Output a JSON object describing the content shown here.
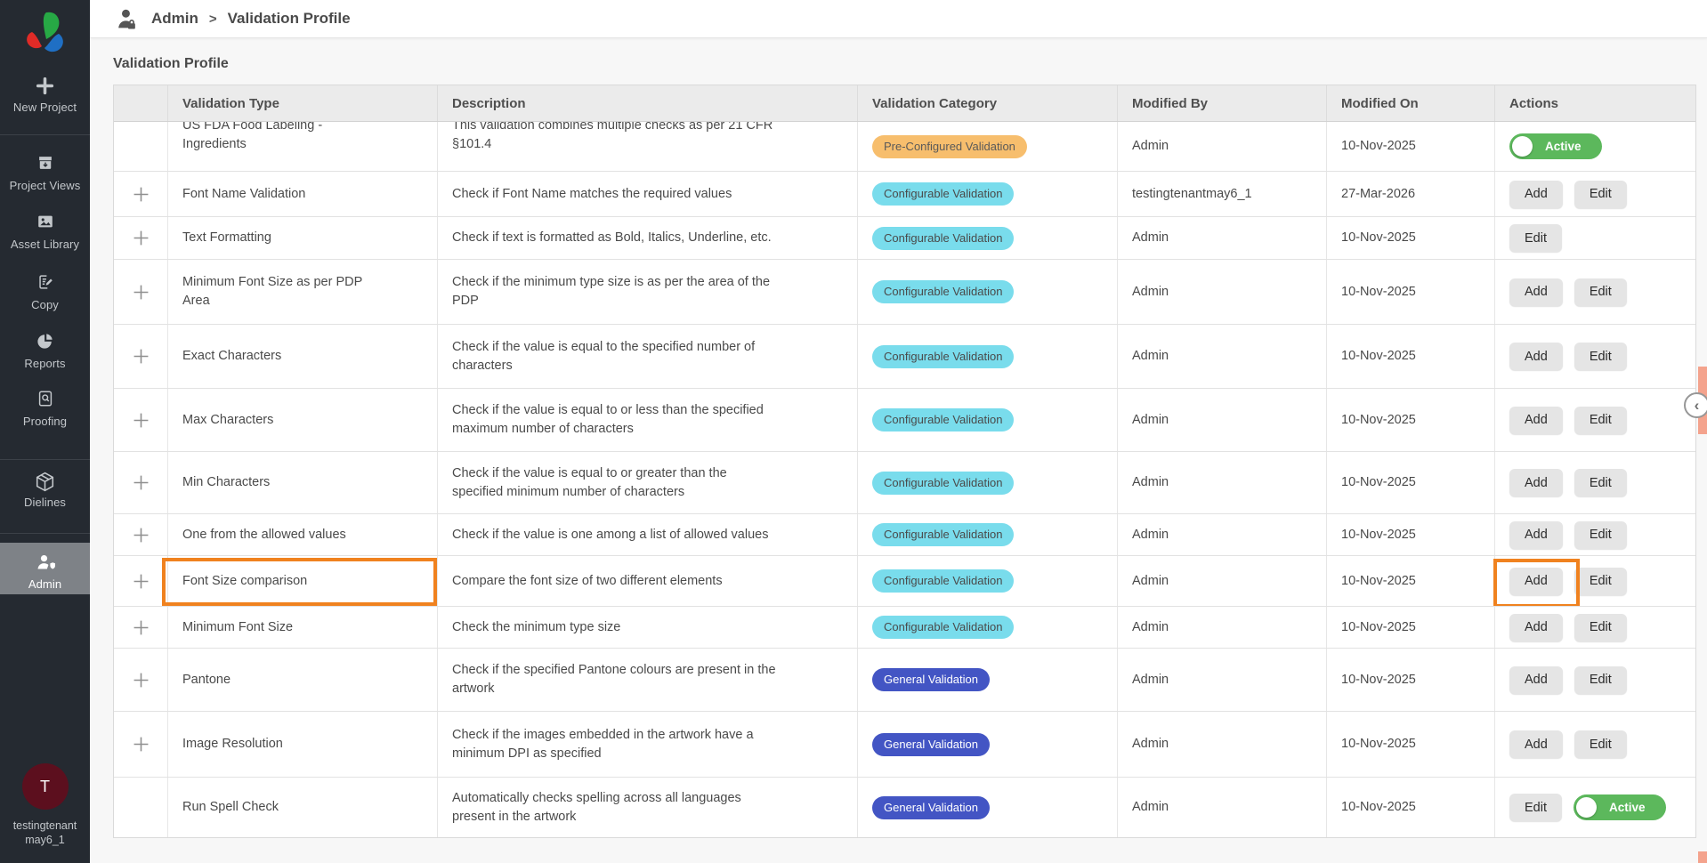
{
  "colors": {
    "sidebar_bg": "#252A31",
    "avatar_bg": "#5C0F1E",
    "badge_preconfigured": "#F7BE6D",
    "badge_configurable": "#79DCEC",
    "badge_general": "#4355C4",
    "toggle_active": "#5CB85C",
    "highlight": "#F0821F",
    "scroll_thumb": "#F4A38D"
  },
  "sidebar": {
    "new_project": "New Project",
    "items": [
      {
        "label": "Project Views"
      },
      {
        "label": "Asset Library"
      },
      {
        "label": "Copy"
      },
      {
        "label": "Reports"
      },
      {
        "label": "Proofing"
      },
      {
        "label": "Dielines"
      },
      {
        "label": "Admin",
        "active": true
      }
    ],
    "user": {
      "initial": "T",
      "name_line1": "testingtenant",
      "name_line2": "may6_1"
    }
  },
  "header": {
    "breadcrumb_root": "Admin",
    "breadcrumb_sep": ">",
    "breadcrumb_current": "Validation Profile"
  },
  "page": {
    "title": "Validation Profile"
  },
  "table": {
    "columns": [
      "",
      "Validation Type",
      "Description",
      "Validation Category",
      "Modified By",
      "Modified On",
      "Actions"
    ],
    "rows": [
      {
        "type": "US FDA Food Labeling -\nIngredients",
        "description": "This validation combines multiple checks as per 21 CFR\n§101.4",
        "category": {
          "label": "Pre-Configured Validation",
          "style": "preconfigured"
        },
        "modified_by": "Admin",
        "modified_on": "10-Nov-2025",
        "has_plus": false,
        "clipped": true,
        "actions": [
          {
            "kind": "toggle",
            "label": "Active"
          }
        ]
      },
      {
        "type": "Font Name Validation",
        "description": "Check if Font Name matches the required values",
        "category": {
          "label": "Configurable Validation",
          "style": "configurable"
        },
        "modified_by": "testingtenantmay6_1",
        "modified_on": "27-Mar-2026",
        "has_plus": true,
        "actions": [
          {
            "kind": "button",
            "label": "Add"
          },
          {
            "kind": "button",
            "label": "Edit"
          }
        ]
      },
      {
        "type": "Text Formatting",
        "description": "Check if text is formatted as Bold, Italics, Underline, etc.",
        "category": {
          "label": "Configurable Validation",
          "style": "configurable"
        },
        "modified_by": "Admin",
        "modified_on": "10-Nov-2025",
        "has_plus": true,
        "actions": [
          {
            "kind": "button",
            "label": "Edit"
          }
        ]
      },
      {
        "type": "Minimum Font Size as per PDP\nArea",
        "description": "Check if the minimum type size is as per the area of the\nPDP",
        "category": {
          "label": "Configurable Validation",
          "style": "configurable"
        },
        "modified_by": "Admin",
        "modified_on": "10-Nov-2025",
        "has_plus": true,
        "actions": [
          {
            "kind": "button",
            "label": "Add"
          },
          {
            "kind": "button",
            "label": "Edit"
          }
        ]
      },
      {
        "type": "Exact Characters",
        "description": "Check if the value is equal to the specified number of\ncharacters",
        "category": {
          "label": "Configurable Validation",
          "style": "configurable"
        },
        "modified_by": "Admin",
        "modified_on": "10-Nov-2025",
        "has_plus": true,
        "actions": [
          {
            "kind": "button",
            "label": "Add"
          },
          {
            "kind": "button",
            "label": "Edit"
          }
        ]
      },
      {
        "type": "Max Characters",
        "description": "Check if the value is equal to or less than the specified\nmaximum number of characters",
        "category": {
          "label": "Configurable Validation",
          "style": "configurable"
        },
        "modified_by": "Admin",
        "modified_on": "10-Nov-2025",
        "has_plus": true,
        "actions": [
          {
            "kind": "button",
            "label": "Add"
          },
          {
            "kind": "button",
            "label": "Edit"
          }
        ]
      },
      {
        "type": "Min Characters",
        "description": "Check if the value is equal to or greater than the\nspecified minimum number of characters",
        "category": {
          "label": "Configurable Validation",
          "style": "configurable"
        },
        "modified_by": "Admin",
        "modified_on": "10-Nov-2025",
        "has_plus": true,
        "actions": [
          {
            "kind": "button",
            "label": "Add"
          },
          {
            "kind": "button",
            "label": "Edit"
          }
        ]
      },
      {
        "type": "One from the allowed values",
        "description": "Check if the value is one among a list of allowed values",
        "category": {
          "label": "Configurable Validation",
          "style": "configurable"
        },
        "modified_by": "Admin",
        "modified_on": "10-Nov-2025",
        "has_plus": true,
        "actions": [
          {
            "kind": "button",
            "label": "Add"
          },
          {
            "kind": "button",
            "label": "Edit"
          }
        ]
      },
      {
        "type": "Font Size comparison",
        "description": "Compare the font size of two different elements",
        "category": {
          "label": "Configurable Validation",
          "style": "configurable"
        },
        "modified_by": "Admin",
        "modified_on": "10-Nov-2025",
        "has_plus": true,
        "highlight_type": true,
        "highlight_add": true,
        "actions": [
          {
            "kind": "button",
            "label": "Add"
          },
          {
            "kind": "button",
            "label": "Edit"
          }
        ]
      },
      {
        "type": "Minimum Font Size",
        "description": "Check the minimum type size",
        "category": {
          "label": "Configurable Validation",
          "style": "configurable"
        },
        "modified_by": "Admin",
        "modified_on": "10-Nov-2025",
        "has_plus": true,
        "actions": [
          {
            "kind": "button",
            "label": "Add"
          },
          {
            "kind": "button",
            "label": "Edit"
          }
        ]
      },
      {
        "type": "Pantone",
        "description": "Check if the specified Pantone colours are present in the\nartwork",
        "category": {
          "label": "General Validation",
          "style": "general"
        },
        "modified_by": "Admin",
        "modified_on": "10-Nov-2025",
        "has_plus": true,
        "actions": [
          {
            "kind": "button",
            "label": "Add"
          },
          {
            "kind": "button",
            "label": "Edit"
          }
        ]
      },
      {
        "type": "Image Resolution",
        "description": "Check if the images embedded in the artwork have a\nminimum DPI as specified",
        "category": {
          "label": "General Validation",
          "style": "general"
        },
        "modified_by": "Admin",
        "modified_on": "10-Nov-2025",
        "has_plus": true,
        "actions": [
          {
            "kind": "button",
            "label": "Add"
          },
          {
            "kind": "button",
            "label": "Edit"
          }
        ]
      },
      {
        "type": "Run Spell Check",
        "description": "Automatically checks spelling across all languages\npresent in the artwork",
        "category": {
          "label": "General Validation",
          "style": "general"
        },
        "modified_by": "Admin",
        "modified_on": "10-Nov-2025",
        "has_plus": false,
        "actions": [
          {
            "kind": "button",
            "label": "Edit"
          },
          {
            "kind": "toggle",
            "label": "Active"
          }
        ]
      }
    ]
  }
}
